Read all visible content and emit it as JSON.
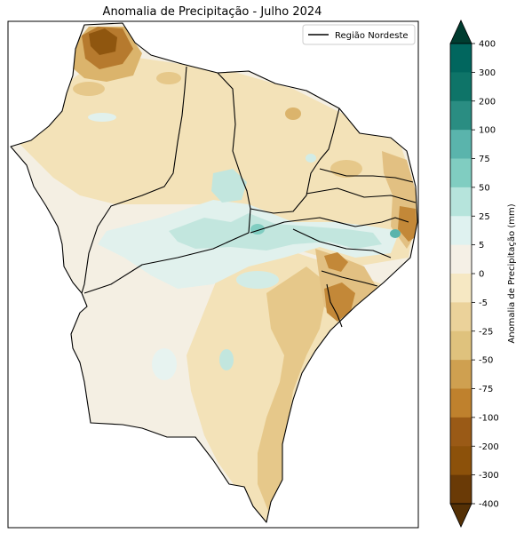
{
  "map": {
    "title": "Anomalia de Precipitação - Julho 2024",
    "legend": {
      "label": "Região Nordeste",
      "placement": "top-right",
      "line_color": "#000000"
    },
    "colorbar": {
      "label": "Anomalia de Precipitação (mm)",
      "ticks": [
        "400",
        "300",
        "200",
        "100",
        "75",
        "50",
        "25",
        "5",
        "0",
        "-5",
        "-25",
        "-50",
        "-75",
        "-100",
        "-200",
        "-300",
        "-400"
      ],
      "colors": [
        "#003c30",
        "#01665e",
        "#0e7468",
        "#2a8d82",
        "#5ab4ac",
        "#80cdc1",
        "#b6e4dc",
        "#dff2f0",
        "#f5f0e6",
        "#f6e8c3",
        "#ebd29a",
        "#dfc27d",
        "#cfa050",
        "#bf812d",
        "#9a5a16",
        "#8c510a",
        "#6a3a06",
        "#543005"
      ],
      "extend": "both"
    },
    "colors": {
      "background": "#f5f0e6",
      "dry_light": "#f6e8c3",
      "dry_mid": "#dfc27d",
      "dry_strong": "#bf812d",
      "dry_extreme": "#8c510a",
      "wet_light": "#dff2f0",
      "wet_mid": "#b6e4dc",
      "wet_strong": "#80cdc1",
      "border": "#000000"
    }
  }
}
